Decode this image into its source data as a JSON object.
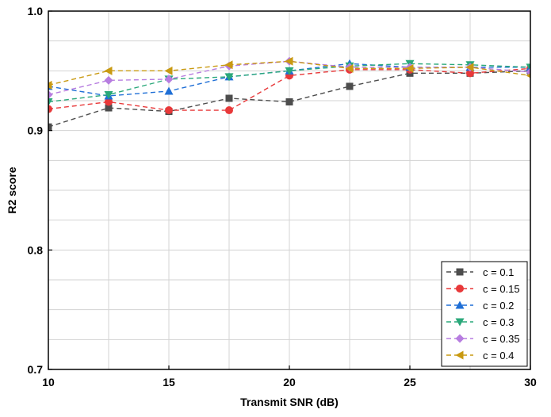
{
  "chart_data": {
    "type": "line",
    "xlabel": "Transmit SNR (dB)",
    "ylabel": "R2 score",
    "xlim": [
      10,
      30
    ],
    "ylim": [
      0.7,
      1.0
    ],
    "xticks": [
      10,
      15,
      20,
      25,
      30
    ],
    "yticks": [
      0.7,
      0.8,
      0.9,
      1.0
    ],
    "ytick_labels": [
      "0.7",
      "0.8",
      "0.9",
      "1.0"
    ],
    "grid": true,
    "legend_position": "bottom-right",
    "x": [
      10,
      12.5,
      15,
      17.5,
      20,
      22.5,
      25,
      27.5,
      30
    ],
    "series": [
      {
        "name": "c = 0.1",
        "color": "#4d4d4d",
        "marker": "square",
        "values": [
          0.903,
          0.919,
          0.916,
          0.927,
          0.924,
          0.937,
          0.948,
          0.948,
          0.95
        ]
      },
      {
        "name": "c = 0.15",
        "color": "#e8393a",
        "marker": "circle",
        "values": [
          0.918,
          0.924,
          0.917,
          0.917,
          0.946,
          0.951,
          0.951,
          0.948,
          0.952
        ]
      },
      {
        "name": "c = 0.2",
        "color": "#1f6fd6",
        "marker": "triangle-up",
        "values": [
          0.937,
          0.929,
          0.933,
          0.945,
          0.95,
          0.956,
          0.953,
          0.953,
          0.953
        ]
      },
      {
        "name": "c = 0.3",
        "color": "#2aa87a",
        "marker": "triangle-down",
        "values": [
          0.924,
          0.93,
          0.943,
          0.945,
          0.95,
          0.954,
          0.956,
          0.955,
          0.953
        ]
      },
      {
        "name": "c = 0.35",
        "color": "#b77de0",
        "marker": "diamond",
        "values": [
          0.93,
          0.942,
          0.943,
          0.954,
          0.958,
          0.953,
          0.953,
          0.953,
          0.949
        ]
      },
      {
        "name": "c = 0.4",
        "color": "#c99a12",
        "marker": "triangle-left",
        "values": [
          0.938,
          0.95,
          0.95,
          0.955,
          0.958,
          0.952,
          0.952,
          0.953,
          0.946
        ]
      }
    ]
  }
}
